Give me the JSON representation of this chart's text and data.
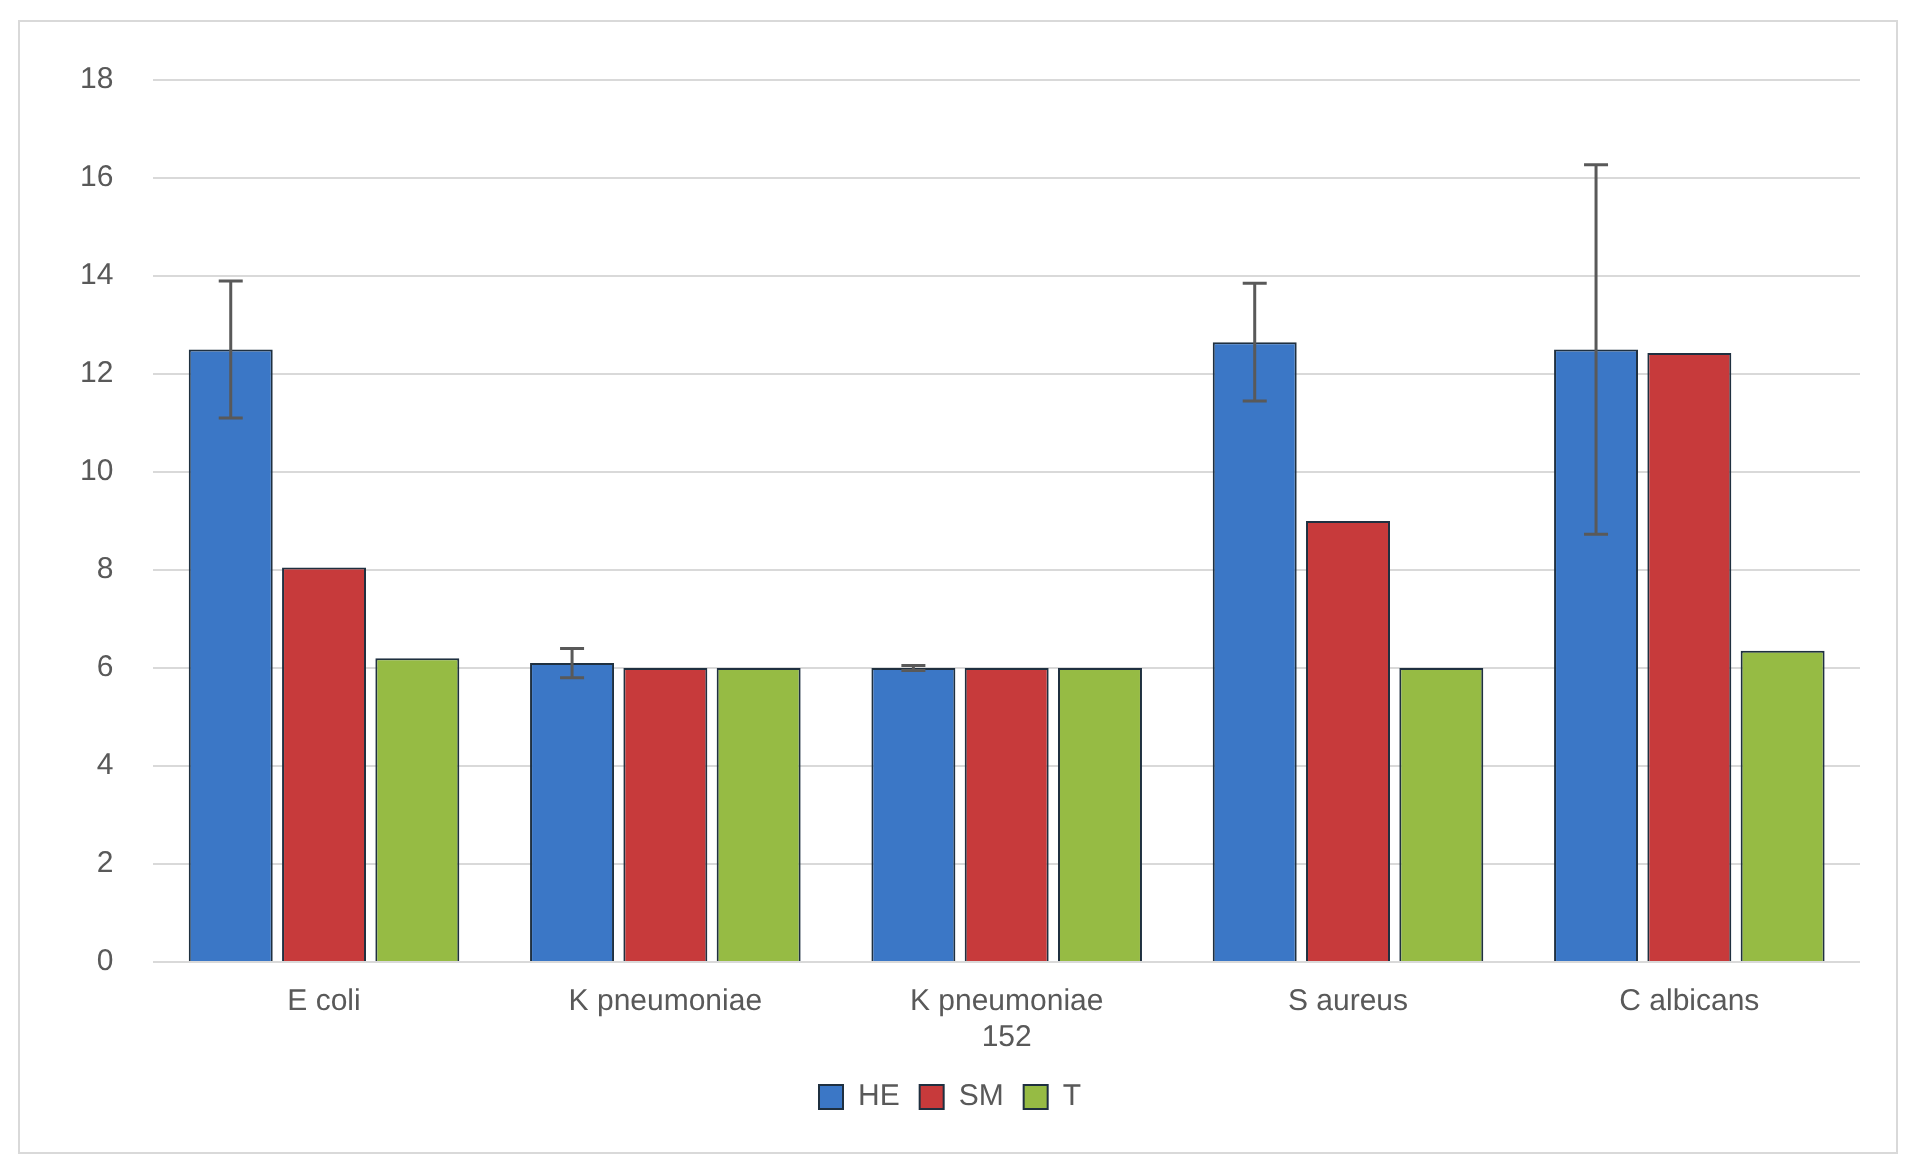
{
  "chart_data": {
    "type": "bar",
    "categories": [
      "E coli",
      "K pneumoniae",
      "K pneumoniae 152",
      "S aureus",
      "C albicans"
    ],
    "series": [
      {
        "name": "HE",
        "color": "#3b77c6",
        "values": [
          12.5,
          6.1,
          6.0,
          12.65,
          12.5
        ],
        "errors": [
          1.4,
          0.3,
          0.05,
          1.2,
          3.77
        ]
      },
      {
        "name": "SM",
        "color": "#c73a3b",
        "values": [
          8.05,
          6.0,
          6.0,
          9.0,
          12.43
        ]
      },
      {
        "name": "T",
        "color": "#96bb44",
        "values": [
          6.2,
          6.0,
          6.0,
          6.0,
          6.35
        ]
      }
    ],
    "ylim": [
      0,
      18
    ],
    "yticks": [
      0,
      2,
      4,
      6,
      8,
      10,
      12,
      14,
      16,
      18
    ],
    "grid": "y",
    "legend": "bottom"
  }
}
